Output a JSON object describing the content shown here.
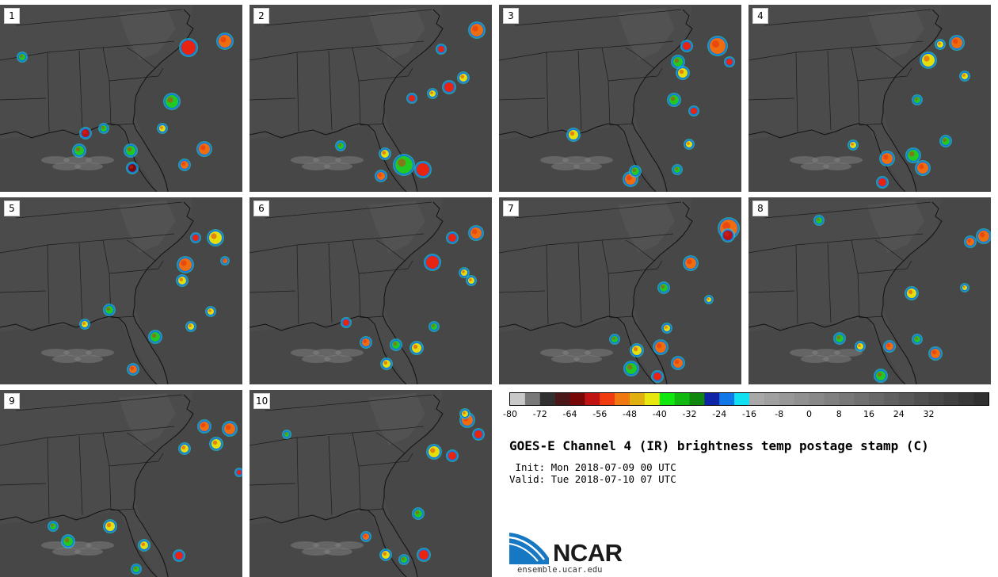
{
  "panels": [
    {
      "label": "1",
      "storms": [
        [
          238,
          60,
          9,
          "#e8230f"
        ],
        [
          284,
          52,
          8,
          "#ee6d0e"
        ],
        [
          217,
          128,
          8,
          "#22c922"
        ],
        [
          108,
          168,
          5,
          "#b51414"
        ],
        [
          165,
          190,
          6,
          "#22c922"
        ],
        [
          258,
          188,
          7,
          "#ee6d0e"
        ],
        [
          167,
          212,
          5,
          "#7a0a0a"
        ],
        [
          233,
          208,
          5,
          "#ee6d0e"
        ],
        [
          28,
          72,
          4,
          "#22c922"
        ],
        [
          205,
          162,
          4,
          "#e3df0d"
        ],
        [
          100,
          190,
          6,
          "#22c922"
        ],
        [
          131,
          162,
          4,
          "#22c922"
        ]
      ]
    },
    {
      "label": "2",
      "storms": [
        [
          602,
          38,
          8,
          "#ee6d0e"
        ],
        [
          567,
          110,
          6,
          "#e8230f"
        ],
        [
          510,
          208,
          11,
          "#22c922"
        ],
        [
          534,
          214,
          8,
          "#e8230f"
        ],
        [
          486,
          194,
          5,
          "#e3df0d"
        ],
        [
          481,
          222,
          5,
          "#ee6d0e"
        ],
        [
          557,
          62,
          4,
          "#e8230f"
        ],
        [
          585,
          98,
          5,
          "#e3df0d"
        ],
        [
          520,
          124,
          4,
          "#e8230f"
        ],
        [
          546,
          118,
          4,
          "#e3df0d"
        ],
        [
          430,
          184,
          4,
          "#22c922"
        ]
      ]
    },
    {
      "label": "3",
      "storms": [
        [
          906,
          58,
          10,
          "#ee6d0e"
        ],
        [
          867,
          58,
          5,
          "#e8230f"
        ],
        [
          856,
          78,
          6,
          "#22c922"
        ],
        [
          862,
          92,
          6,
          "#e3df0d"
        ],
        [
          851,
          126,
          6,
          "#22c922"
        ],
        [
          876,
          140,
          4,
          "#e8230f"
        ],
        [
          724,
          170,
          6,
          "#e3df0d"
        ],
        [
          796,
          226,
          7,
          "#ee6d0e"
        ],
        [
          802,
          216,
          5,
          "#22c922"
        ],
        [
          870,
          182,
          4,
          "#e3df0d"
        ],
        [
          855,
          214,
          4,
          "#22c922"
        ],
        [
          921,
          78,
          4,
          "#e8230f"
        ]
      ]
    },
    {
      "label": "4",
      "storms": [
        [
          1172,
          76,
          8,
          "#e3df0d"
        ],
        [
          1208,
          54,
          7,
          "#ee6d0e"
        ],
        [
          1187,
          56,
          4,
          "#e3df0d"
        ],
        [
          1153,
          196,
          7,
          "#22c922"
        ],
        [
          1120,
          200,
          7,
          "#ee6d0e"
        ],
        [
          1165,
          212,
          7,
          "#ee6d0e"
        ],
        [
          1114,
          230,
          5,
          "#e8230f"
        ],
        [
          1077,
          183,
          4,
          "#e3df0d"
        ],
        [
          1194,
          178,
          5,
          "#22c922"
        ],
        [
          1158,
          126,
          4,
          "#22c922"
        ],
        [
          1218,
          96,
          4,
          "#e3df0d"
        ]
      ]
    },
    {
      "label": "5",
      "storms": [
        [
          272,
          300,
          8,
          "#e3df0d"
        ],
        [
          234,
          334,
          8,
          "#ee6d0e"
        ],
        [
          230,
          354,
          5,
          "#e3df0d"
        ],
        [
          138,
          391,
          5,
          "#22c922"
        ],
        [
          196,
          425,
          6,
          "#22c922"
        ],
        [
          168,
          466,
          5,
          "#ee6d0e"
        ],
        [
          241,
          412,
          4,
          "#e3df0d"
        ],
        [
          266,
          393,
          4,
          "#e3df0d"
        ],
        [
          247,
          300,
          4,
          "#e8230f"
        ],
        [
          107,
          409,
          4,
          "#e3df0d"
        ],
        [
          284,
          329,
          3,
          "#ee6d0e"
        ]
      ]
    },
    {
      "label": "6",
      "storms": [
        [
          546,
          331,
          8,
          "#e8230f"
        ],
        [
          601,
          294,
          7,
          "#ee6d0e"
        ],
        [
          571,
          300,
          5,
          "#e8230f"
        ],
        [
          500,
          435,
          5,
          "#22c922"
        ],
        [
          526,
          439,
          6,
          "#e3df0d"
        ],
        [
          462,
          432,
          5,
          "#ee6d0e"
        ],
        [
          488,
          459,
          5,
          "#e3df0d"
        ],
        [
          548,
          412,
          4,
          "#22c922"
        ],
        [
          595,
          354,
          4,
          "#e3df0d"
        ],
        [
          437,
          407,
          4,
          "#e8230f"
        ],
        [
          586,
          344,
          4,
          "#e3df0d"
        ]
      ]
    },
    {
      "label": "7",
      "storms": [
        [
          920,
          288,
          11,
          "#ee6d0e"
        ],
        [
          919,
          297,
          6,
          "#b51414"
        ],
        [
          872,
          332,
          7,
          "#ee6d0e"
        ],
        [
          838,
          363,
          5,
          "#22c922"
        ],
        [
          804,
          442,
          6,
          "#e3df0d"
        ],
        [
          834,
          438,
          7,
          "#ee6d0e"
        ],
        [
          797,
          465,
          7,
          "#22c922"
        ],
        [
          856,
          458,
          6,
          "#ee6d0e"
        ],
        [
          842,
          414,
          4,
          "#e3df0d"
        ],
        [
          776,
          428,
          4,
          "#22c922"
        ],
        [
          830,
          475,
          5,
          "#e8230f"
        ],
        [
          895,
          378,
          3,
          "#e3df0d"
        ]
      ]
    },
    {
      "label": "8",
      "storms": [
        [
          1242,
          298,
          7,
          "#ee6d0e"
        ],
        [
          1225,
          305,
          5,
          "#ee6d0e"
        ],
        [
          1151,
          370,
          6,
          "#e3df0d"
        ],
        [
          1123,
          437,
          5,
          "#ee6d0e"
        ],
        [
          1181,
          446,
          6,
          "#ee6d0e"
        ],
        [
          1112,
          474,
          6,
          "#22c922"
        ],
        [
          1060,
          427,
          5,
          "#22c922"
        ],
        [
          1086,
          437,
          4,
          "#e3df0d"
        ],
        [
          1158,
          428,
          4,
          "#22c922"
        ],
        [
          1034,
          278,
          4,
          "#22c922"
        ],
        [
          1218,
          363,
          3,
          "#e3df0d"
        ]
      ]
    },
    {
      "label": "9",
      "storms": [
        [
          258,
          538,
          6,
          "#ee6d0e"
        ],
        [
          290,
          541,
          7,
          "#ee6d0e"
        ],
        [
          273,
          560,
          6,
          "#e3df0d"
        ],
        [
          233,
          566,
          5,
          "#e3df0d"
        ],
        [
          139,
          664,
          6,
          "#e3df0d"
        ],
        [
          86,
          683,
          6,
          "#22c922"
        ],
        [
          182,
          688,
          5,
          "#e3df0d"
        ],
        [
          226,
          701,
          5,
          "#e8230f"
        ],
        [
          172,
          718,
          4,
          "#22c922"
        ],
        [
          67,
          664,
          4,
          "#22c922"
        ],
        [
          302,
          596,
          3,
          "#e8230f"
        ]
      ]
    },
    {
      "label": "10",
      "storms": [
        [
          548,
          570,
          7,
          "#e3df0d"
        ],
        [
          571,
          575,
          5,
          "#e8230f"
        ],
        [
          590,
          530,
          7,
          "#ee6d0e"
        ],
        [
          604,
          548,
          5,
          "#e8230f"
        ],
        [
          587,
          522,
          4,
          "#e3df0d"
        ],
        [
          528,
          648,
          5,
          "#22c922"
        ],
        [
          535,
          700,
          6,
          "#e8230f"
        ],
        [
          487,
          700,
          5,
          "#e3df0d"
        ],
        [
          462,
          677,
          4,
          "#ee6d0e"
        ],
        [
          510,
          706,
          4,
          "#22c922"
        ],
        [
          362,
          548,
          3,
          "#22c922"
        ]
      ]
    }
  ],
  "colorbar": {
    "colors": [
      "#c8c8c8",
      "#787878",
      "#303030",
      "#4a1818",
      "#780808",
      "#c01414",
      "#f03c10",
      "#f07810",
      "#e0b010",
      "#e8e810",
      "#10e810",
      "#10b810",
      "#108810",
      "#1024a8",
      "#1078e8",
      "#10e0f0",
      "#a8a8a8",
      "#a0a0a0",
      "#989898",
      "#909090",
      "#888888",
      "#808080",
      "#787878",
      "#707070",
      "#686868",
      "#606060",
      "#585858",
      "#505050",
      "#484848",
      "#404040",
      "#383838",
      "#303030"
    ],
    "ticks": [
      "-80",
      "-72",
      "-64",
      "-56",
      "-48",
      "-40",
      "-32",
      "-24",
      "-16",
      "-8",
      "0",
      "8",
      "16",
      "24",
      "32"
    ]
  },
  "title": "GOES-E Channel 4 (IR) brightness temp postage stamp (C)",
  "init_line": " Init: Mon 2018-07-09 00 UTC",
  "valid_line": "Valid: Tue 2018-07-10 07 UTC",
  "logo": {
    "text": "NCAR",
    "url": "ensemble.ucar.edu",
    "blue": "#1677c2"
  }
}
